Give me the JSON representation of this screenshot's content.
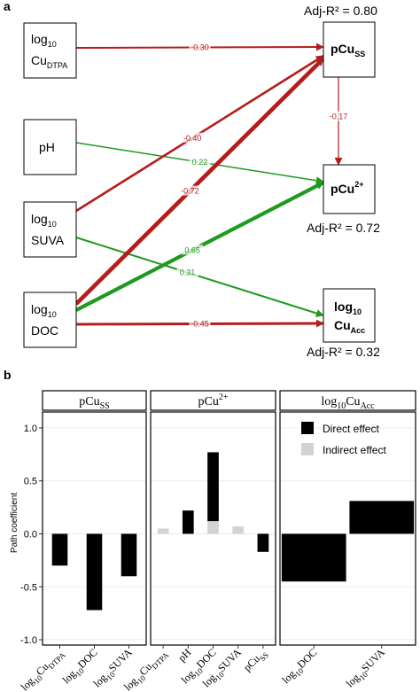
{
  "panel_a": {
    "letter": "a",
    "colors": {
      "negative": "#b51c1c",
      "positive": "#1f9a1f"
    },
    "nodes": {
      "cu": {
        "line1": "log",
        "sub1": "10",
        "line2": "Cu",
        "sub2": "DTPA"
      },
      "ph": {
        "text": "pH"
      },
      "suva": {
        "line1": "log",
        "sub1": "10",
        "line2": "SUVA"
      },
      "doc": {
        "line1": "log",
        "sub1": "10",
        "line2": "DOC"
      },
      "pcuss": {
        "main": "pCu",
        "sub": "SS"
      },
      "pcu2": {
        "main": "pCu",
        "sup": "2+"
      },
      "cuacc": {
        "line1": "log",
        "sub1": "10",
        "line2": "Cu",
        "sub2": "Acc"
      }
    },
    "adj": {
      "pcuss": "Adj-R² = 0.80",
      "pcu2": "Adj-R² = 0.72",
      "cuacc": "Adj-R² = 0.32"
    },
    "paths": [
      {
        "from": "cu",
        "to": "pcuss",
        "coef": "-0.30",
        "sign": "negative",
        "weight": 0.3
      },
      {
        "from": "ph",
        "to": "pcu2",
        "coef": "0.22",
        "sign": "positive",
        "weight": 0.22
      },
      {
        "from": "suva",
        "to": "pcuss",
        "coef": "-0.40",
        "sign": "negative",
        "weight": 0.4
      },
      {
        "from": "suva",
        "to": "cuacc",
        "coef": "0.31",
        "sign": "positive",
        "weight": 0.31
      },
      {
        "from": "doc",
        "to": "pcuss",
        "coef": "-0.72",
        "sign": "negative",
        "weight": 0.72
      },
      {
        "from": "doc",
        "to": "pcu2",
        "coef": "0.65",
        "sign": "positive",
        "weight": 0.65
      },
      {
        "from": "doc",
        "to": "cuacc",
        "coef": "-0.45",
        "sign": "negative",
        "weight": 0.45
      },
      {
        "from": "pcuss",
        "to": "pcu2",
        "coef": "-0.17",
        "sign": "negative",
        "weight": 0.17
      }
    ]
  },
  "chart_data": {
    "type": "bar",
    "letter": "b",
    "ylabel": "Path coefficient",
    "ylim": [
      -1.05,
      1.15
    ],
    "yticks": [
      -1.0,
      -0.5,
      0.0,
      0.5,
      1.0
    ],
    "tick_labels": [
      "-1.0",
      "-0.5",
      "0.0",
      "0.5",
      "1.0"
    ],
    "colors": {
      "direct": "#000000",
      "indirect": "#d3d3d3"
    },
    "legend": {
      "position": "inside-right-panel-top",
      "entries": [
        {
          "key": "direct",
          "label": "Direct effect"
        },
        {
          "key": "indirect",
          "label": "Indirect effect"
        }
      ]
    },
    "panels": [
      {
        "strip": {
          "main": "pCu",
          "sub": "SS"
        },
        "categories": [
          {
            "main": "log",
            "sub": "10",
            "rest": "Cu",
            "sub2": "DTPA"
          },
          {
            "main": "log",
            "sub": "10",
            "rest": "DOC"
          },
          {
            "main": "log",
            "sub": "10",
            "rest": "SUVA"
          }
        ],
        "series": [
          {
            "key": "direct",
            "values": [
              -0.3,
              -0.72,
              -0.4
            ]
          },
          {
            "key": "indirect",
            "values": [
              0,
              0,
              0
            ]
          }
        ]
      },
      {
        "strip": {
          "main": "pCu",
          "sup": "2+"
        },
        "categories": [
          {
            "main": "log",
            "sub": "10",
            "rest": "Cu",
            "sub2": "DTPA"
          },
          {
            "main": "pH"
          },
          {
            "main": "log",
            "sub": "10",
            "rest": "DOC"
          },
          {
            "main": "log",
            "sub": "10",
            "rest": "SUVA"
          },
          {
            "main": "pCu",
            "sub": "SS"
          }
        ],
        "series": [
          {
            "key": "direct",
            "values": [
              0,
              0.22,
              0.65,
              0,
              -0.17
            ]
          },
          {
            "key": "indirect",
            "values": [
              0.05,
              0,
              0.12,
              0.07,
              0
            ]
          }
        ]
      },
      {
        "strip": {
          "main": "log",
          "sub": "10",
          "rest": "Cu",
          "sub2": "Acc"
        },
        "categories": [
          {
            "main": "log",
            "sub": "10",
            "rest": "DOC"
          },
          {
            "main": "log",
            "sub": "10",
            "rest": "SUVA"
          }
        ],
        "series": [
          {
            "key": "direct",
            "values": [
              -0.45,
              0.31
            ]
          },
          {
            "key": "indirect",
            "values": [
              0,
              0
            ]
          }
        ]
      }
    ]
  }
}
